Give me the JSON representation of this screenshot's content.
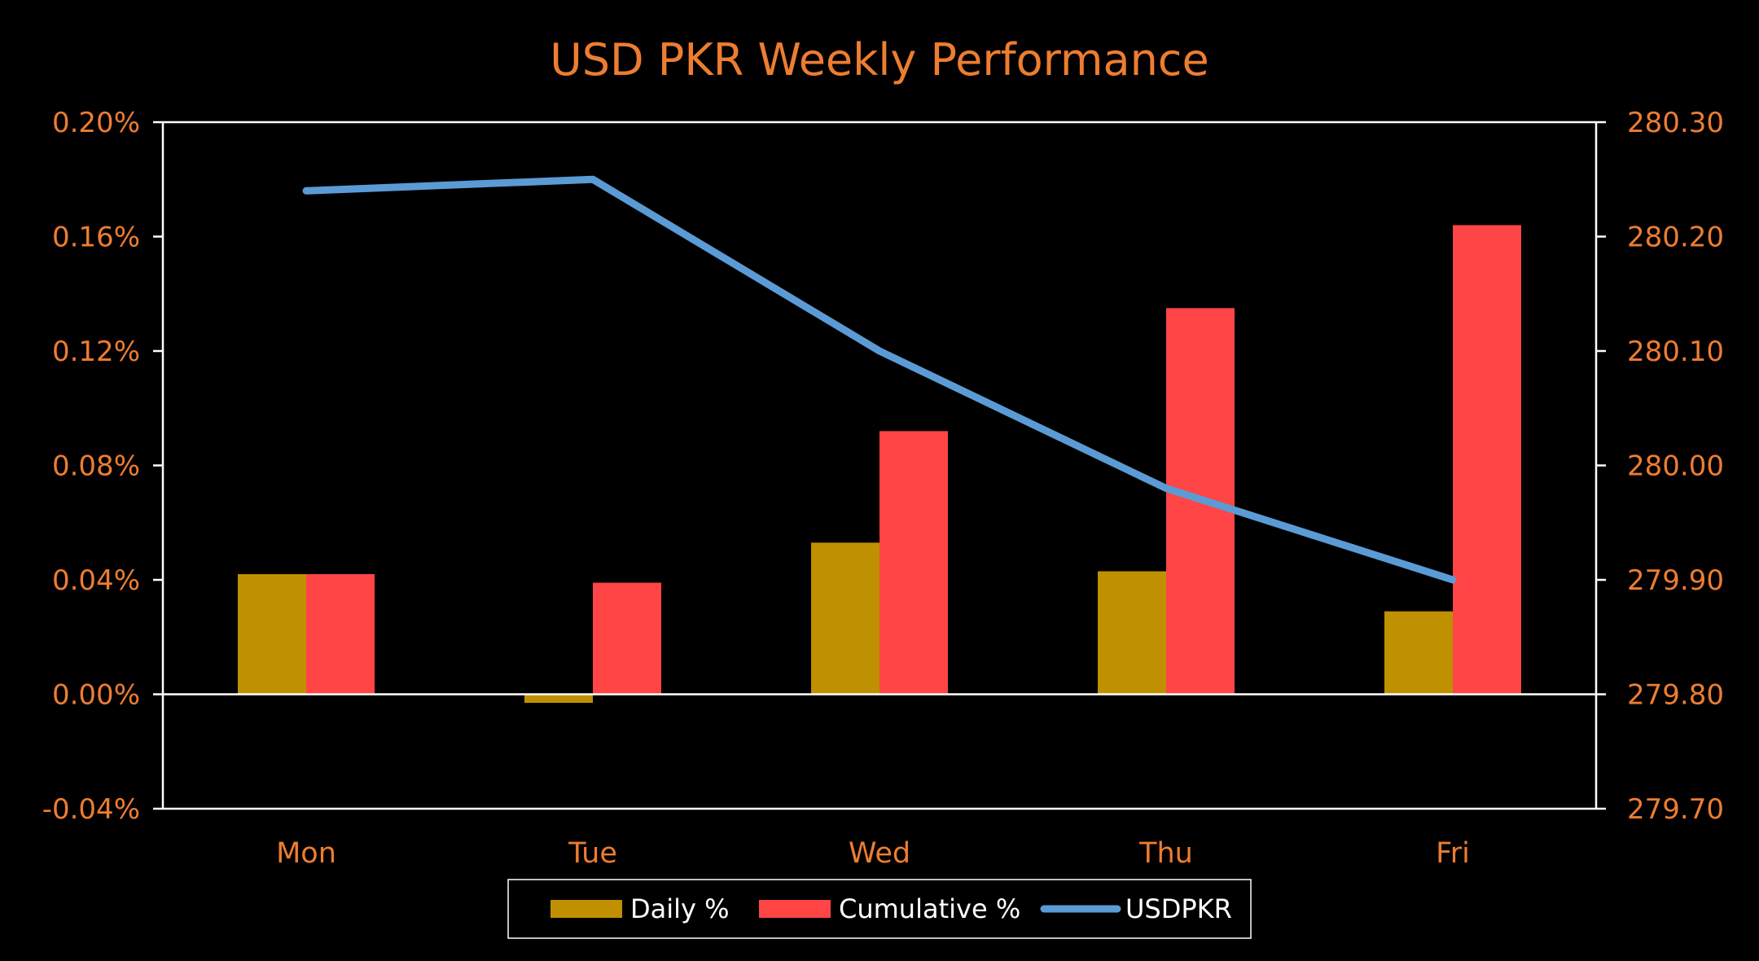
{
  "colors": {
    "background": "#000000",
    "text": "#ED7D31",
    "axis": "#FFFFFF",
    "daily": "#BF9000",
    "cumulative": "#FF4545",
    "usdpkr": "#5B9BD5",
    "legend_text": "#FFFFFF"
  },
  "chart_data": {
    "type": "bar",
    "title": "USD PKR Weekly Performance",
    "categories": [
      "Mon",
      "Tue",
      "Wed",
      "Thu",
      "Fri"
    ],
    "series": [
      {
        "name": "Daily %",
        "type": "bar",
        "axis": "left",
        "values": [
          0.042,
          -0.003,
          0.053,
          0.043,
          0.029
        ]
      },
      {
        "name": "Cumulative %",
        "type": "bar",
        "axis": "left",
        "values": [
          0.042,
          0.039,
          0.092,
          0.135,
          0.164
        ]
      },
      {
        "name": "USDPKR",
        "type": "line",
        "axis": "right",
        "values": [
          280.24,
          280.25,
          280.1,
          279.98,
          279.9
        ]
      }
    ],
    "left_axis": {
      "ylim": [
        -0.04,
        0.2
      ],
      "ticks": [
        -0.04,
        0.0,
        0.04,
        0.08,
        0.12,
        0.16,
        0.2
      ],
      "tick_labels": [
        "-0.04%",
        "0.00%",
        "0.04%",
        "0.08%",
        "0.12%",
        "0.16%",
        "0.20%"
      ]
    },
    "right_axis": {
      "ylim": [
        279.7,
        280.3
      ],
      "ticks": [
        279.7,
        279.8,
        279.9,
        280.0,
        280.1,
        280.2,
        280.3
      ],
      "tick_labels": [
        "279.70",
        "279.80",
        "279.90",
        "280.00",
        "280.10",
        "280.20",
        "280.30"
      ]
    },
    "grid": false,
    "legend_position": "bottom"
  }
}
